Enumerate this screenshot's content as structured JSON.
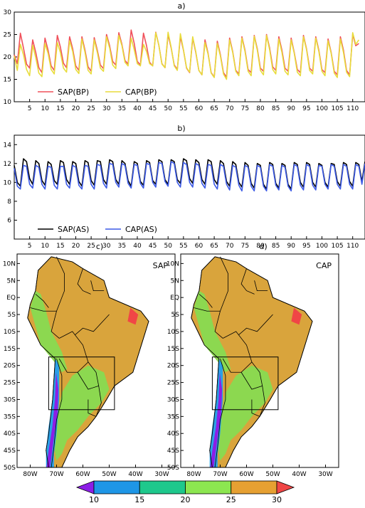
{
  "chart_data": [
    {
      "type": "line",
      "panel": "a)",
      "xlim": [
        0,
        114
      ],
      "ylim": [
        10,
        30
      ],
      "x_ticks": [
        5,
        10,
        15,
        20,
        25,
        30,
        35,
        40,
        45,
        50,
        55,
        60,
        65,
        70,
        75,
        80,
        85,
        90,
        95,
        100,
        105,
        110
      ],
      "y_ticks": [
        10,
        15,
        20,
        25,
        30
      ],
      "legend_position": "bottom-left",
      "series": [
        {
          "name": "SAP(BP)",
          "color": "#f0505a",
          "values": [
            20.5,
            18.5,
            25.3,
            22.0,
            18.4,
            17.5,
            23.8,
            21.0,
            17.6,
            16.5,
            24.2,
            21.5,
            18.0,
            17.0,
            24.8,
            22.2,
            18.6,
            17.6,
            24.5,
            21.8,
            18.0,
            17.0,
            24.5,
            21.5,
            17.8,
            16.8,
            24.3,
            21.5,
            18.2,
            17.4,
            25.0,
            22.5,
            19.0,
            18.2,
            25.4,
            22.8,
            19.2,
            18.4,
            26.0,
            23.0,
            19.0,
            18.2,
            25.3,
            22.5,
            18.8,
            18.0,
            25.5,
            22.6,
            18.5,
            17.6,
            25.0,
            22.0,
            18.2,
            17.2,
            24.5,
            21.5,
            17.5,
            16.5,
            24.2,
            21.0,
            17.0,
            16.0,
            23.8,
            20.8,
            16.5,
            15.5,
            23.5,
            20.5,
            16.5,
            15.5,
            24.2,
            21.2,
            17.0,
            16.2,
            24.5,
            21.5,
            17.2,
            16.5,
            24.8,
            21.8,
            17.5,
            16.8,
            25.0,
            22.0,
            17.8,
            17.0,
            24.5,
            21.5,
            17.5,
            16.8,
            24.2,
            21.0,
            17.2,
            16.5,
            24.8,
            21.8,
            17.5,
            16.8,
            24.5,
            21.5,
            17.2,
            16.5,
            24.0,
            21.0,
            16.8,
            16.0,
            24.5,
            21.5,
            17.0,
            16.0,
            25.0,
            22.5,
            23.0
          ]
        },
        {
          "name": "CAP(BP)",
          "color": "#e8dc3c",
          "values": [
            20.2,
            17.0,
            22.8,
            20.5,
            17.2,
            15.8,
            22.6,
            19.8,
            16.4,
            15.6,
            23.0,
            20.8,
            17.2,
            16.2,
            23.2,
            21.0,
            17.5,
            16.6,
            23.6,
            21.2,
            17.2,
            16.3,
            24.0,
            21.0,
            17.0,
            16.2,
            23.8,
            21.0,
            17.5,
            16.8,
            24.5,
            22.0,
            18.2,
            17.4,
            24.8,
            22.5,
            18.8,
            18.0,
            24.2,
            21.6,
            18.5,
            18.0,
            22.8,
            21.2,
            18.5,
            18.0,
            25.4,
            22.6,
            18.4,
            17.6,
            25.5,
            22.2,
            18.0,
            17.0,
            25.2,
            21.6,
            17.6,
            16.6,
            24.5,
            21.2,
            17.0,
            16.0,
            23.2,
            20.6,
            16.4,
            15.4,
            23.0,
            20.2,
            16.2,
            15.0,
            23.8,
            21.0,
            16.8,
            15.8,
            24.2,
            21.2,
            16.8,
            15.8,
            24.6,
            21.5,
            17.0,
            16.0,
            24.8,
            21.6,
            17.2,
            16.2,
            24.0,
            21.0,
            16.8,
            16.0,
            23.8,
            20.8,
            16.6,
            15.8,
            24.5,
            21.6,
            17.0,
            16.2,
            24.2,
            21.2,
            16.8,
            15.8,
            23.6,
            20.8,
            16.4,
            15.4,
            24.0,
            21.0,
            16.6,
            15.6,
            25.4,
            22.8,
            23.8
          ]
        }
      ]
    },
    {
      "type": "line",
      "panel": "b)",
      "xlim": [
        0,
        114
      ],
      "ylim": [
        4,
        15
      ],
      "x_ticks": [
        5,
        10,
        15,
        20,
        25,
        30,
        35,
        40,
        45,
        50,
        55,
        60,
        65,
        70,
        75,
        80,
        85,
        90,
        95,
        100,
        105,
        110
      ],
      "y_ticks": [
        6,
        8,
        10,
        12,
        14
      ],
      "legend_position": "bottom-left",
      "series": [
        {
          "name": "SAP(AS)",
          "color": "#000000",
          "values": [
            11.8,
            10.0,
            9.6,
            12.5,
            12.2,
            10.4,
            9.8,
            12.3,
            12.0,
            10.2,
            9.7,
            12.2,
            11.9,
            10.2,
            9.8,
            12.3,
            12.1,
            10.3,
            9.8,
            12.2,
            12.0,
            10.1,
            9.6,
            12.3,
            12.1,
            10.2,
            9.7,
            12.3,
            12.2,
            10.3,
            9.8,
            12.4,
            12.2,
            10.3,
            9.8,
            12.3,
            12.0,
            10.2,
            9.6,
            12.2,
            12.0,
            10.1,
            9.7,
            12.3,
            12.1,
            10.2,
            9.8,
            12.4,
            12.2,
            10.3,
            9.8,
            12.4,
            12.2,
            10.3,
            9.9,
            12.5,
            12.3,
            10.4,
            9.9,
            12.4,
            12.1,
            10.3,
            9.8,
            12.4,
            12.2,
            10.3,
            9.8,
            12.3,
            12.0,
            10.1,
            9.6,
            12.2,
            11.9,
            10.0,
            9.5,
            12.1,
            11.8,
            9.9,
            9.4,
            12.0,
            11.8,
            9.8,
            9.3,
            12.1,
            11.9,
            9.9,
            9.4,
            12.0,
            11.8,
            9.8,
            9.3,
            12.1,
            11.9,
            10.0,
            9.5,
            12.1,
            11.9,
            10.0,
            9.5,
            12.0,
            11.8,
            10.0,
            9.5,
            12.0,
            11.9,
            10.1,
            9.6,
            12.1,
            11.9,
            10.1,
            9.6,
            12.1,
            11.9,
            10.1,
            12.2
          ]
        },
        {
          "name": "CAP(AS)",
          "color": "#3c5ae6",
          "values": [
            11.5,
            9.6,
            9.3,
            11.8,
            11.7,
            9.8,
            9.4,
            11.8,
            11.6,
            9.8,
            9.3,
            11.7,
            11.6,
            9.7,
            9.3,
            11.7,
            11.7,
            9.8,
            9.4,
            11.8,
            11.6,
            9.7,
            9.3,
            11.8,
            11.7,
            9.8,
            9.3,
            11.9,
            11.8,
            9.9,
            9.4,
            12.0,
            11.9,
            10.0,
            9.5,
            12.0,
            11.8,
            9.9,
            9.4,
            11.9,
            11.8,
            9.9,
            9.4,
            12.0,
            11.9,
            10.0,
            9.5,
            12.1,
            12.0,
            10.1,
            9.6,
            12.2,
            12.0,
            10.0,
            9.5,
            12.1,
            11.9,
            10.0,
            9.5,
            12.0,
            11.8,
            9.9,
            9.4,
            11.9,
            11.8,
            9.8,
            9.3,
            11.9,
            11.7,
            9.8,
            9.2,
            11.8,
            11.6,
            9.7,
            9.1,
            11.8,
            11.6,
            9.6,
            9.1,
            11.8,
            11.6,
            9.6,
            9.1,
            11.9,
            11.7,
            9.7,
            9.2,
            11.8,
            11.6,
            9.6,
            9.1,
            11.9,
            11.7,
            9.7,
            9.2,
            11.9,
            11.7,
            9.7,
            9.2,
            11.8,
            11.7,
            9.8,
            9.3,
            11.9,
            11.7,
            9.8,
            9.3,
            11.9,
            11.7,
            9.8,
            9.3,
            11.9,
            11.7,
            9.8,
            12.0
          ]
        }
      ]
    },
    {
      "type": "map",
      "panel": "c)",
      "label": "SAP",
      "lon_ticks": [
        "80W",
        "70W",
        "60W",
        "50W",
        "40W",
        "30W"
      ],
      "lat_ticks": [
        "10N",
        "5N",
        "EQ",
        "5S",
        "10S",
        "15S",
        "20S",
        "25S",
        "30S",
        "35S",
        "40S",
        "45S",
        "50S"
      ]
    },
    {
      "type": "map",
      "panel": "d)",
      "label": "CAP",
      "lon_ticks": [
        "80W",
        "70W",
        "60W",
        "50W",
        "40W",
        "30W"
      ],
      "lat_ticks": [
        "10N",
        "5N",
        "EQ",
        "5S",
        "10S",
        "15S",
        "20S",
        "25S",
        "30S",
        "35S",
        "40S",
        "45S",
        "50S"
      ]
    },
    {
      "type": "colorbar",
      "labels": [
        "10",
        "15",
        "20",
        "25",
        "30"
      ],
      "colors": [
        "#8c1ee6",
        "#1e96e6",
        "#1ec88c",
        "#8ce650",
        "#e6a032",
        "#f04646"
      ]
    }
  ]
}
